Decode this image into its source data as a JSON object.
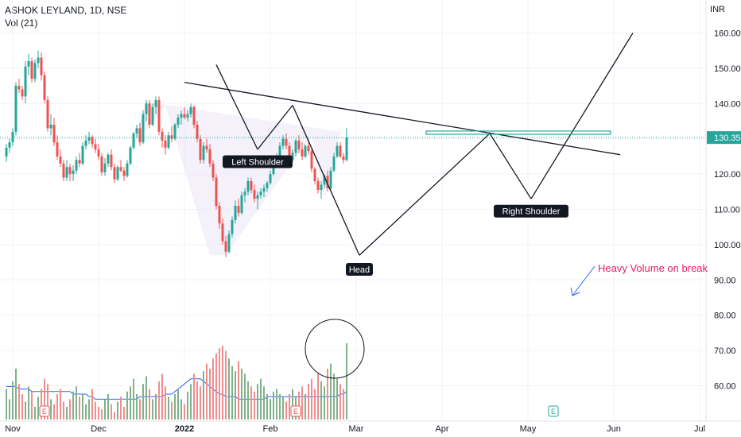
{
  "header": {
    "symbol_line": "ASHOK LEYLAND, 1D, NSE",
    "volume_label": "Vol (21)",
    "currency": "INR"
  },
  "colors": {
    "up": "#26a69a",
    "down": "#ef5350",
    "vol_up": "#7fb28a",
    "vol_down": "#f28d8d",
    "vol_ma": "#2962ff",
    "last_price_bg": "#26a69a",
    "annotation_text": "#e91e63",
    "pattern_fill": "#ede7f6"
  },
  "chart_data": {
    "type": "candlestick",
    "title": "ASHOK LEYLAND, 1D, NSE",
    "ylabel": "INR",
    "ylim": [
      50,
      164
    ],
    "y_ticks": [
      "160.00",
      "150.00",
      "140.00",
      "130.00",
      "120.00",
      "110.00",
      "100.00",
      "90.00",
      "80.00",
      "70.00",
      "60.00"
    ],
    "x_ticks": [
      "Nov",
      "Dec",
      "2022",
      "Feb",
      "Mar",
      "Apr",
      "May",
      "Jun",
      "Jul"
    ],
    "x_tick_index": [
      0,
      27,
      54,
      81,
      108,
      135,
      162,
      189,
      216
    ],
    "last_price": "130.35",
    "grid": true,
    "series": [
      {
        "name": "price",
        "x_start": 0,
        "ohlc": [
          [
            125.0,
            128.5,
            123.5,
            127.5
          ],
          [
            127.5,
            130.0,
            126.0,
            129.0
          ],
          [
            129.0,
            133.0,
            128.0,
            132.0
          ],
          [
            132.0,
            146.0,
            131.0,
            145.0
          ],
          [
            145.0,
            147.0,
            143.0,
            144.0
          ],
          [
            144.0,
            145.0,
            141.0,
            142.0
          ],
          [
            142.0,
            152.0,
            140.0,
            150.5
          ],
          [
            150.5,
            154.0,
            148.0,
            152.0
          ],
          [
            152.0,
            153.0,
            146.0,
            147.0
          ],
          [
            147.0,
            152.5,
            146.0,
            151.5
          ],
          [
            151.5,
            155.0,
            150.0,
            153.0
          ],
          [
            153.0,
            154.5,
            146.5,
            148.0
          ],
          [
            148.0,
            149.0,
            140.0,
            141.0
          ],
          [
            141.0,
            142.0,
            132.0,
            133.0
          ],
          [
            133.0,
            137.0,
            131.0,
            134.0
          ],
          [
            134.0,
            136.0,
            128.0,
            129.0
          ],
          [
            129.0,
            131.0,
            124.0,
            125.0
          ],
          [
            125.0,
            127.0,
            122.0,
            123.0
          ],
          [
            123.0,
            124.0,
            118.0,
            119.0
          ],
          [
            119.0,
            124.0,
            118.0,
            122.0
          ],
          [
            122.0,
            123.0,
            118.0,
            120.0
          ],
          [
            120.0,
            122.5,
            118.0,
            121.0
          ],
          [
            121.0,
            125.0,
            120.0,
            124.0
          ],
          [
            124.0,
            126.0,
            122.0,
            123.0
          ],
          [
            123.0,
            129.0,
            122.5,
            128.0
          ],
          [
            128.0,
            131.0,
            127.0,
            129.5
          ],
          [
            129.5,
            132.0,
            128.5,
            130.5
          ],
          [
            130.5,
            131.0,
            127.5,
            128.5
          ],
          [
            128.5,
            130.0,
            126.0,
            127.0
          ],
          [
            127.0,
            128.5,
            124.0,
            125.0
          ],
          [
            125.0,
            126.0,
            119.5,
            120.5
          ],
          [
            120.5,
            124.5,
            119.5,
            123.0
          ],
          [
            123.0,
            126.0,
            122.0,
            125.5
          ],
          [
            125.5,
            127.0,
            121.0,
            122.0
          ],
          [
            122.0,
            123.0,
            117.5,
            118.5
          ],
          [
            118.5,
            122.5,
            118.0,
            122.0
          ],
          [
            122.0,
            124.0,
            120.5,
            121.0
          ],
          [
            121.0,
            122.0,
            118.0,
            119.5
          ],
          [
            119.5,
            124.0,
            119.0,
            123.0
          ],
          [
            123.0,
            128.0,
            122.5,
            127.5
          ],
          [
            127.5,
            132.0,
            127.0,
            131.5
          ],
          [
            131.5,
            134.0,
            130.5,
            133.0
          ],
          [
            133.0,
            134.5,
            128.0,
            129.0
          ],
          [
            129.0,
            138.0,
            128.5,
            137.0
          ],
          [
            137.0,
            141.0,
            135.0,
            140.0
          ],
          [
            140.0,
            141.0,
            133.0,
            134.0
          ],
          [
            134.0,
            140.0,
            133.5,
            139.0
          ],
          [
            139.0,
            142.0,
            137.0,
            141.0
          ],
          [
            141.0,
            142.0,
            131.0,
            132.0
          ],
          [
            132.0,
            133.0,
            127.5,
            129.5
          ],
          [
            129.5,
            131.0,
            125.5,
            127.5
          ],
          [
            127.5,
            132.0,
            127.0,
            131.0
          ],
          [
            131.0,
            133.5,
            129.0,
            130.0
          ],
          [
            130.0,
            134.5,
            129.5,
            134.0
          ],
          [
            134.0,
            137.0,
            133.0,
            136.0
          ],
          [
            136.0,
            138.0,
            134.0,
            137.0
          ],
          [
            137.0,
            139.0,
            135.5,
            136.0
          ],
          [
            136.0,
            138.0,
            135.0,
            137.0
          ],
          [
            137.0,
            140.0,
            136.0,
            139.0
          ],
          [
            139.0,
            139.5,
            133.0,
            134.0
          ],
          [
            134.0,
            135.0,
            129.0,
            130.0
          ],
          [
            130.0,
            131.0,
            123.0,
            124.0
          ],
          [
            124.0,
            129.0,
            123.0,
            128.0
          ],
          [
            128.0,
            130.0,
            126.0,
            127.0
          ],
          [
            127.0,
            128.5,
            122.0,
            123.0
          ],
          [
            123.0,
            124.0,
            118.0,
            119.0
          ],
          [
            119.0,
            120.0,
            110.0,
            111.0
          ],
          [
            111.0,
            112.0,
            104.5,
            106.0
          ],
          [
            106.0,
            107.5,
            100.0,
            101.0
          ],
          [
            101.0,
            102.5,
            96.5,
            98.0
          ],
          [
            98.0,
            104.0,
            97.5,
            103.0
          ],
          [
            103.0,
            108.0,
            102.0,
            107.0
          ],
          [
            107.0,
            112.5,
            106.0,
            111.0
          ],
          [
            111.0,
            113.0,
            108.0,
            109.0
          ],
          [
            109.0,
            115.0,
            108.5,
            114.0
          ],
          [
            114.0,
            116.0,
            112.0,
            115.0
          ],
          [
            115.0,
            119.0,
            114.0,
            118.0
          ],
          [
            118.0,
            119.0,
            114.5,
            115.5
          ],
          [
            115.5,
            117.0,
            112.0,
            113.0
          ],
          [
            113.0,
            115.0,
            110.0,
            114.0
          ],
          [
            114.0,
            116.0,
            113.0,
            115.0
          ],
          [
            115.0,
            117.0,
            113.5,
            116.0
          ],
          [
            116.0,
            118.0,
            115.0,
            117.5
          ],
          [
            117.5,
            121.0,
            117.0,
            120.0
          ],
          [
            120.0,
            124.0,
            119.5,
            123.5
          ],
          [
            123.5,
            126.0,
            122.5,
            125.0
          ],
          [
            125.0,
            129.0,
            124.5,
            128.0
          ],
          [
            128.0,
            131.0,
            127.0,
            130.0
          ],
          [
            130.0,
            131.5,
            127.0,
            128.0
          ],
          [
            128.0,
            129.0,
            123.0,
            124.0
          ],
          [
            124.0,
            127.0,
            123.5,
            126.0
          ],
          [
            126.0,
            130.0,
            125.0,
            129.5
          ],
          [
            129.5,
            131.0,
            126.0,
            127.0
          ],
          [
            127.0,
            129.0,
            124.0,
            125.0
          ],
          [
            125.0,
            128.5,
            124.5,
            128.0
          ],
          [
            128.0,
            130.0,
            125.5,
            126.5
          ],
          [
            126.5,
            127.0,
            120.5,
            121.5
          ],
          [
            121.5,
            122.0,
            117.0,
            118.0
          ],
          [
            118.0,
            119.0,
            114.5,
            115.5
          ],
          [
            115.5,
            118.0,
            113.0,
            117.0
          ],
          [
            117.0,
            120.0,
            116.0,
            119.5
          ],
          [
            119.5,
            121.0,
            115.0,
            116.0
          ],
          [
            116.0,
            122.0,
            115.5,
            121.0
          ],
          [
            121.0,
            126.0,
            120.5,
            125.0
          ],
          [
            125.0,
            129.0,
            124.5,
            128.0
          ],
          [
            128.0,
            129.0,
            124.5,
            125.0
          ],
          [
            125.0,
            126.0,
            123.0,
            124.0
          ],
          [
            124.0,
            133.0,
            123.5,
            130.35
          ]
        ]
      },
      {
        "name": "Vol (21)",
        "volume_values": [
          62,
          58,
          65,
          70,
          64,
          60,
          57,
          63,
          61,
          55,
          59,
          62,
          66,
          64,
          58,
          56,
          60,
          62,
          57,
          55,
          58,
          61,
          63,
          59,
          60,
          56,
          58,
          62,
          57,
          55,
          54,
          58,
          60,
          56,
          53,
          57,
          59,
          55,
          61,
          63,
          66,
          60,
          58,
          64,
          67,
          62,
          58,
          60,
          65,
          68,
          63,
          59,
          57,
          60,
          62,
          58,
          56,
          61,
          64,
          68,
          65,
          63,
          69,
          72,
          70,
          74,
          76,
          78,
          79,
          77,
          74,
          71,
          69,
          73,
          70,
          68,
          65,
          63,
          61,
          64,
          66,
          63,
          60,
          58,
          61,
          62,
          60,
          59,
          57,
          60,
          62,
          59,
          61,
          63,
          60,
          64,
          66,
          62,
          68,
          65,
          63,
          70,
          72,
          68,
          66,
          64,
          62,
          80
        ],
        "volume_ma": [
          63,
          63,
          63,
          63,
          62,
          62,
          62,
          62,
          61,
          61,
          61,
          61,
          61,
          61,
          61,
          61,
          61,
          61,
          61,
          61,
          61,
          60,
          60,
          60,
          60,
          60,
          59,
          59,
          58,
          58,
          58,
          58,
          58,
          58,
          58,
          58,
          58,
          58,
          58,
          58,
          58,
          58,
          59,
          59,
          59,
          59,
          59,
          59,
          59,
          59,
          60,
          60,
          60,
          61,
          62,
          63,
          64,
          65,
          66,
          66,
          66,
          66,
          65,
          64,
          63,
          62,
          61,
          60,
          60,
          59,
          59,
          59,
          59,
          58,
          58,
          58,
          58,
          58,
          58,
          58,
          58,
          58,
          59,
          59,
          59,
          59,
          59,
          59,
          59,
          59,
          59,
          59,
          59,
          59,
          59,
          59,
          59,
          59,
          59,
          59,
          59,
          59,
          59,
          59,
          59,
          60,
          60,
          61
        ]
      }
    ],
    "annotations": {
      "labels": [
        "Left Shoulder",
        "Head",
        "Right Shoulder"
      ],
      "callout": "Heavy Volume on break",
      "earnings_badges": [
        "E",
        "E",
        "E"
      ]
    }
  }
}
